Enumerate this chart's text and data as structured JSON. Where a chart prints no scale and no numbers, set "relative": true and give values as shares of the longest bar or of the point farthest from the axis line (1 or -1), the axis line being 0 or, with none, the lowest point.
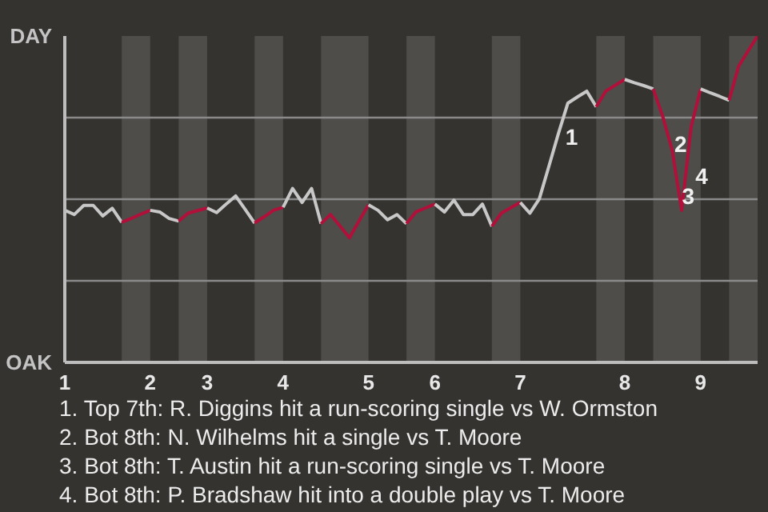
{
  "chart_data": {
    "type": "line",
    "categories": [
      "1",
      null,
      null,
      null,
      null,
      null,
      null,
      null,
      null,
      "2",
      null,
      null,
      null,
      null,
      null,
      "3",
      null,
      null,
      null,
      null,
      null,
      null,
      null,
      "4",
      null,
      null,
      null,
      null,
      null,
      null,
      null,
      null,
      "5",
      null,
      null,
      null,
      null,
      null,
      null,
      "6",
      null,
      null,
      null,
      null,
      null,
      null,
      null,
      null,
      "7",
      null,
      null,
      null,
      null,
      null,
      null,
      null,
      null,
      null,
      null,
      "8",
      null,
      null,
      null,
      null,
      null,
      null,
      null,
      "9",
      null,
      null,
      null,
      null,
      null,
      null
    ],
    "series": [
      {
        "color": "#c8c8c8",
        "values": [
          0.466,
          0.453,
          0.481,
          0.481,
          0.449,
          0.472,
          0.429,
          null,
          null,
          null,
          null,
          null,
          null,
          null,
          null,
          null,
          null,
          null,
          null,
          null,
          null,
          null,
          null,
          null,
          null,
          null,
          null,
          null,
          null,
          null,
          null,
          null,
          null,
          null,
          null,
          null,
          null,
          null,
          null,
          null,
          null,
          null,
          null,
          null,
          null,
          null,
          null,
          null,
          null,
          null,
          null,
          null,
          null,
          null,
          null,
          null,
          null,
          null,
          null,
          null,
          null,
          null,
          null,
          null,
          null,
          null,
          null,
          null,
          null,
          null,
          null,
          null,
          null,
          null
        ]
      },
      {
        "color": "#b0103a",
        "values": [
          null,
          null,
          null,
          null,
          null,
          null,
          0.429,
          0.441,
          0.454,
          0.466,
          null,
          null,
          null,
          null,
          null,
          null,
          null,
          null,
          null,
          null,
          null,
          null,
          null,
          null,
          null,
          null,
          null,
          null,
          null,
          null,
          null,
          null,
          null,
          null,
          null,
          null,
          null,
          null,
          null,
          null,
          null,
          null,
          null,
          null,
          null,
          null,
          null,
          null,
          null,
          null,
          null,
          null,
          null,
          null,
          null,
          null,
          null,
          null,
          null,
          null,
          null,
          null,
          null,
          null,
          null,
          null,
          null,
          null,
          null,
          null,
          null,
          null,
          null,
          null
        ]
      },
      {
        "color": "#c8c8c8",
        "values": [
          null,
          null,
          null,
          null,
          null,
          null,
          null,
          null,
          null,
          0.466,
          0.461,
          0.441,
          0.433,
          null,
          null,
          null,
          null,
          null,
          null,
          null,
          null,
          null,
          null,
          null,
          null,
          null,
          null,
          null,
          null,
          null,
          null,
          null,
          null,
          null,
          null,
          null,
          null,
          null,
          null,
          null,
          null,
          null,
          null,
          null,
          null,
          null,
          null,
          null,
          null,
          null,
          null,
          null,
          null,
          null,
          null,
          null,
          null,
          null,
          null,
          null,
          null,
          null,
          null,
          null,
          null,
          null,
          null,
          null,
          null,
          null,
          null,
          null,
          null,
          null
        ]
      },
      {
        "color": "#b0103a",
        "values": [
          null,
          null,
          null,
          null,
          null,
          null,
          null,
          null,
          null,
          null,
          null,
          null,
          0.433,
          0.457,
          0.465,
          0.473,
          null,
          null,
          null,
          null,
          null,
          null,
          null,
          null,
          null,
          null,
          null,
          null,
          null,
          null,
          null,
          null,
          null,
          null,
          null,
          null,
          null,
          null,
          null,
          null,
          null,
          null,
          null,
          null,
          null,
          null,
          null,
          null,
          null,
          null,
          null,
          null,
          null,
          null,
          null,
          null,
          null,
          null,
          null,
          null,
          null,
          null,
          null,
          null,
          null,
          null,
          null,
          null,
          null,
          null,
          null,
          null,
          null,
          null
        ]
      },
      {
        "color": "#c8c8c8",
        "values": [
          null,
          null,
          null,
          null,
          null,
          null,
          null,
          null,
          null,
          null,
          null,
          null,
          null,
          null,
          null,
          0.473,
          0.459,
          0.485,
          0.51,
          0.469,
          0.427,
          null,
          null,
          null,
          null,
          null,
          null,
          null,
          null,
          null,
          null,
          null,
          null,
          null,
          null,
          null,
          null,
          null,
          null,
          null,
          null,
          null,
          null,
          null,
          null,
          null,
          null,
          null,
          null,
          null,
          null,
          null,
          null,
          null,
          null,
          null,
          null,
          null,
          null,
          null,
          null,
          null,
          null,
          null,
          null,
          null,
          null,
          null,
          null,
          null,
          null,
          null,
          null,
          null
        ]
      },
      {
        "color": "#b0103a",
        "values": [
          null,
          null,
          null,
          null,
          null,
          null,
          null,
          null,
          null,
          null,
          null,
          null,
          null,
          null,
          null,
          null,
          null,
          null,
          null,
          null,
          0.427,
          0.446,
          0.466,
          0.475,
          null,
          null,
          null,
          null,
          null,
          null,
          null,
          null,
          null,
          null,
          null,
          null,
          null,
          null,
          null,
          null,
          null,
          null,
          null,
          null,
          null,
          null,
          null,
          null,
          null,
          null,
          null,
          null,
          null,
          null,
          null,
          null,
          null,
          null,
          null,
          null,
          null,
          null,
          null,
          null,
          null,
          null,
          null,
          null,
          null,
          null,
          null,
          null,
          null,
          null
        ]
      },
      {
        "color": "#c8c8c8",
        "values": [
          null,
          null,
          null,
          null,
          null,
          null,
          null,
          null,
          null,
          null,
          null,
          null,
          null,
          null,
          null,
          null,
          null,
          null,
          null,
          null,
          null,
          null,
          null,
          0.475,
          0.533,
          0.49,
          0.533,
          0.425,
          null,
          null,
          null,
          null,
          null,
          null,
          null,
          null,
          null,
          null,
          null,
          null,
          null,
          null,
          null,
          null,
          null,
          null,
          null,
          null,
          null,
          null,
          null,
          null,
          null,
          null,
          null,
          null,
          null,
          null,
          null,
          null,
          null,
          null,
          null,
          null,
          null,
          null,
          null,
          null,
          null,
          null,
          null,
          null,
          null,
          null
        ]
      },
      {
        "color": "#b0103a",
        "values": [
          null,
          null,
          null,
          null,
          null,
          null,
          null,
          null,
          null,
          null,
          null,
          null,
          null,
          null,
          null,
          null,
          null,
          null,
          null,
          null,
          null,
          null,
          null,
          null,
          null,
          null,
          null,
          0.425,
          0.453,
          0.418,
          0.382,
          0.433,
          0.483,
          null,
          null,
          null,
          null,
          null,
          null,
          null,
          null,
          null,
          null,
          null,
          null,
          null,
          null,
          null,
          null,
          null,
          null,
          null,
          null,
          null,
          null,
          null,
          null,
          null,
          null,
          null,
          null,
          null,
          null,
          null,
          null,
          null,
          null,
          null,
          null,
          null,
          null,
          null,
          null,
          null
        ]
      },
      {
        "color": "#c8c8c8",
        "values": [
          null,
          null,
          null,
          null,
          null,
          null,
          null,
          null,
          null,
          null,
          null,
          null,
          null,
          null,
          null,
          null,
          null,
          null,
          null,
          null,
          null,
          null,
          null,
          null,
          null,
          null,
          null,
          null,
          null,
          null,
          null,
          null,
          0.483,
          0.466,
          0.437,
          0.453,
          0.425,
          null,
          null,
          null,
          null,
          null,
          null,
          null,
          null,
          null,
          null,
          null,
          null,
          null,
          null,
          null,
          null,
          null,
          null,
          null,
          null,
          null,
          null,
          null,
          null,
          null,
          null,
          null,
          null,
          null,
          null,
          null,
          null,
          null,
          null,
          null,
          null,
          null
        ]
      },
      {
        "color": "#b0103a",
        "values": [
          null,
          null,
          null,
          null,
          null,
          null,
          null,
          null,
          null,
          null,
          null,
          null,
          null,
          null,
          null,
          null,
          null,
          null,
          null,
          null,
          null,
          null,
          null,
          null,
          null,
          null,
          null,
          null,
          null,
          null,
          null,
          null,
          null,
          null,
          null,
          null,
          0.425,
          0.461,
          0.473,
          0.485,
          null,
          null,
          null,
          null,
          null,
          null,
          null,
          null,
          null,
          null,
          null,
          null,
          null,
          null,
          null,
          null,
          null,
          null,
          null,
          null,
          null,
          null,
          null,
          null,
          null,
          null,
          null,
          null,
          null,
          null,
          null,
          null,
          null,
          null
        ]
      },
      {
        "color": "#c8c8c8",
        "values": [
          null,
          null,
          null,
          null,
          null,
          null,
          null,
          null,
          null,
          null,
          null,
          null,
          null,
          null,
          null,
          null,
          null,
          null,
          null,
          null,
          null,
          null,
          null,
          null,
          null,
          null,
          null,
          null,
          null,
          null,
          null,
          null,
          null,
          null,
          null,
          null,
          null,
          null,
          null,
          0.485,
          0.461,
          0.497,
          0.453,
          0.453,
          0.485,
          0.417,
          null,
          null,
          null,
          null,
          null,
          null,
          null,
          null,
          null,
          null,
          null,
          null,
          null,
          null,
          null,
          null,
          null,
          null,
          null,
          null,
          null,
          null,
          null,
          null,
          null,
          null,
          null,
          null
        ]
      },
      {
        "color": "#b0103a",
        "values": [
          null,
          null,
          null,
          null,
          null,
          null,
          null,
          null,
          null,
          null,
          null,
          null,
          null,
          null,
          null,
          null,
          null,
          null,
          null,
          null,
          null,
          null,
          null,
          null,
          null,
          null,
          null,
          null,
          null,
          null,
          null,
          null,
          null,
          null,
          null,
          null,
          null,
          null,
          null,
          null,
          null,
          null,
          null,
          null,
          null,
          0.417,
          0.457,
          0.474,
          0.49,
          null,
          null,
          null,
          null,
          null,
          null,
          null,
          null,
          null,
          null,
          null,
          null,
          null,
          null,
          null,
          null,
          null,
          null,
          null,
          null,
          null,
          null,
          null,
          null,
          null
        ]
      },
      {
        "color": "#c8c8c8",
        "values": [
          null,
          null,
          null,
          null,
          null,
          null,
          null,
          null,
          null,
          null,
          null,
          null,
          null,
          null,
          null,
          null,
          null,
          null,
          null,
          null,
          null,
          null,
          null,
          null,
          null,
          null,
          null,
          null,
          null,
          null,
          null,
          null,
          null,
          null,
          null,
          null,
          null,
          null,
          null,
          null,
          null,
          null,
          null,
          null,
          null,
          null,
          null,
          null,
          0.49,
          0.457,
          0.501,
          0.6,
          0.7,
          0.794,
          0.813,
          0.831,
          0.783,
          null,
          null,
          null,
          null,
          null,
          null,
          null,
          null,
          null,
          null,
          null,
          null,
          null,
          null,
          null,
          null,
          null
        ]
      },
      {
        "color": "#b0103a",
        "values": [
          null,
          null,
          null,
          null,
          null,
          null,
          null,
          null,
          null,
          null,
          null,
          null,
          null,
          null,
          null,
          null,
          null,
          null,
          null,
          null,
          null,
          null,
          null,
          null,
          null,
          null,
          null,
          null,
          null,
          null,
          null,
          null,
          null,
          null,
          null,
          null,
          null,
          null,
          null,
          null,
          null,
          null,
          null,
          null,
          null,
          null,
          null,
          null,
          null,
          null,
          null,
          null,
          null,
          null,
          null,
          null,
          0.783,
          0.831,
          0.849,
          0.867,
          null,
          null,
          null,
          null,
          null,
          null,
          null,
          null,
          null,
          null,
          null,
          null,
          null,
          null
        ]
      },
      {
        "color": "#c8c8c8",
        "values": [
          null,
          null,
          null,
          null,
          null,
          null,
          null,
          null,
          null,
          null,
          null,
          null,
          null,
          null,
          null,
          null,
          null,
          null,
          null,
          null,
          null,
          null,
          null,
          null,
          null,
          null,
          null,
          null,
          null,
          null,
          null,
          null,
          null,
          null,
          null,
          null,
          null,
          null,
          null,
          null,
          null,
          null,
          null,
          null,
          null,
          null,
          null,
          null,
          null,
          null,
          null,
          null,
          null,
          null,
          null,
          null,
          null,
          null,
          null,
          0.867,
          0.857,
          0.848,
          0.838,
          null,
          null,
          null,
          null,
          null,
          null,
          null,
          null,
          null,
          null,
          null
        ]
      },
      {
        "color": "#b0103a",
        "values": [
          null,
          null,
          null,
          null,
          null,
          null,
          null,
          null,
          null,
          null,
          null,
          null,
          null,
          null,
          null,
          null,
          null,
          null,
          null,
          null,
          null,
          null,
          null,
          null,
          null,
          null,
          null,
          null,
          null,
          null,
          null,
          null,
          null,
          null,
          null,
          null,
          null,
          null,
          null,
          null,
          null,
          null,
          null,
          null,
          null,
          null,
          null,
          null,
          null,
          null,
          null,
          null,
          null,
          null,
          null,
          null,
          null,
          null,
          null,
          null,
          null,
          null,
          0.838,
          0.754,
          0.65,
          0.466,
          0.722,
          0.838,
          null,
          null,
          null,
          null,
          null,
          null
        ]
      },
      {
        "color": "#c8c8c8",
        "values": [
          null,
          null,
          null,
          null,
          null,
          null,
          null,
          null,
          null,
          null,
          null,
          null,
          null,
          null,
          null,
          null,
          null,
          null,
          null,
          null,
          null,
          null,
          null,
          null,
          null,
          null,
          null,
          null,
          null,
          null,
          null,
          null,
          null,
          null,
          null,
          null,
          null,
          null,
          null,
          null,
          null,
          null,
          null,
          null,
          null,
          null,
          null,
          null,
          null,
          null,
          null,
          null,
          null,
          null,
          null,
          null,
          null,
          null,
          null,
          null,
          null,
          null,
          null,
          null,
          null,
          null,
          null,
          0.838,
          0.826,
          0.815,
          0.803,
          null,
          null,
          null
        ]
      },
      {
        "color": "#b0103a",
        "values": [
          null,
          null,
          null,
          null,
          null,
          null,
          null,
          null,
          null,
          null,
          null,
          null,
          null,
          null,
          null,
          null,
          null,
          null,
          null,
          null,
          null,
          null,
          null,
          null,
          null,
          null,
          null,
          null,
          null,
          null,
          null,
          null,
          null,
          null,
          null,
          null,
          null,
          null,
          null,
          null,
          null,
          null,
          null,
          null,
          null,
          null,
          null,
          null,
          null,
          null,
          null,
          null,
          null,
          null,
          null,
          null,
          null,
          null,
          null,
          null,
          null,
          null,
          null,
          null,
          null,
          null,
          null,
          null,
          null,
          null,
          0.803,
          0.907,
          0.954,
          1.0
        ]
      }
    ],
    "relative": true,
    "grid": "y",
    "annotations": [
      "DAY",
      "OAK",
      "1",
      "2",
      "3",
      "4",
      "1. Top 7th: R. Diggins hit a run-scoring single vs W. Ormston",
      "2. Bot 8th: N. Wilhelms hit a single vs T. Moore",
      "3. Bot 8th: T. Austin hit a run-scoring single vs T. Moore",
      "4. Bot 8th: P. Bradshaw hit into a double play vs T. Moore"
    ]
  }
}
